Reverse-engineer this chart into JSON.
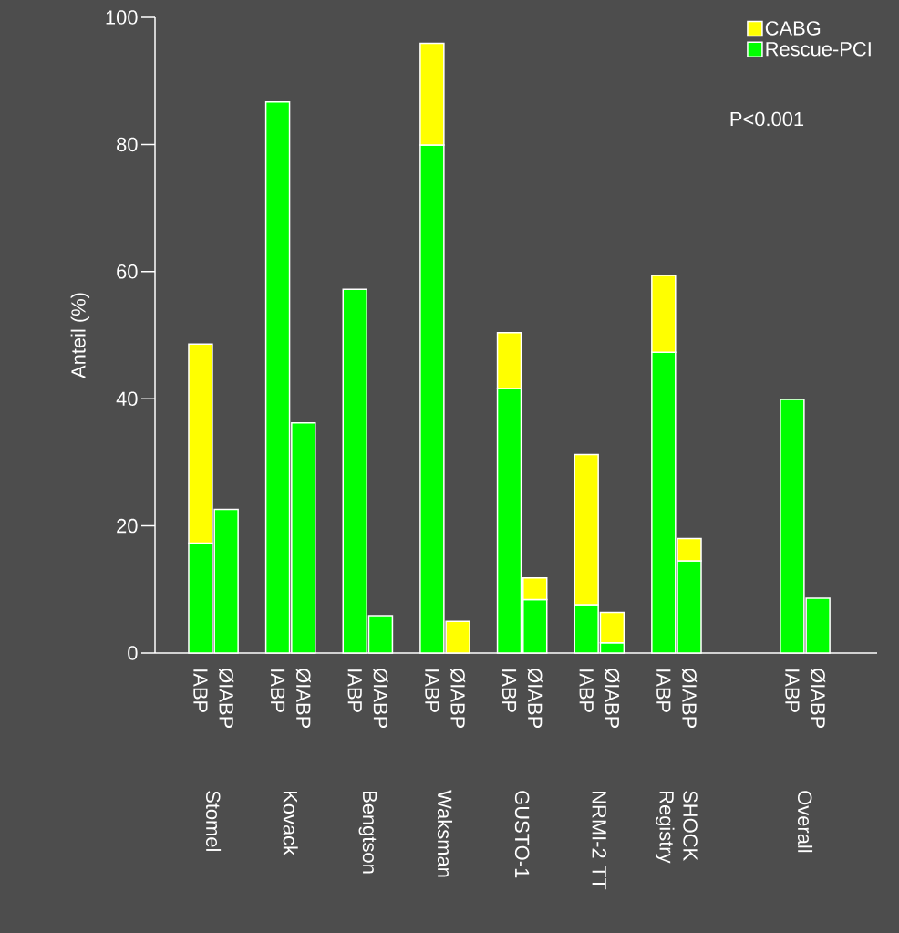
{
  "chart_data": {
    "type": "bar",
    "stacked": true,
    "ylabel": "Anteil (%)",
    "categories": [
      "IABP",
      "ØIABP",
      null,
      "IABP",
      "ØIABP",
      null,
      "IABP",
      "ØIABP",
      null,
      "IABP",
      "ØIABP",
      null,
      "IABP",
      "ØIABP",
      null,
      "IABP",
      "ØIABP",
      null,
      "IABP",
      "ØIABP",
      null,
      null,
      null,
      "IABP",
      "ØIABP"
    ],
    "series": [
      {
        "name": "Rescue-PCI",
        "color": "#00ff00",
        "values": [
          17.3,
          22.6,
          null,
          86.7,
          36.2,
          null,
          57.2,
          5.9,
          null,
          79.9,
          null,
          null,
          41.6,
          8.4,
          null,
          7.6,
          1.6,
          null,
          47.3,
          14.5,
          null,
          null,
          null,
          39.9,
          8.6
        ]
      },
      {
        "name": "CABG",
        "color": "#ffff00",
        "values": [
          31.3,
          null,
          null,
          null,
          null,
          null,
          null,
          null,
          null,
          16.0,
          5.0,
          null,
          8.8,
          3.4,
          null,
          23.6,
          4.8,
          null,
          12.1,
          3.5,
          null,
          null,
          null,
          null,
          null
        ]
      }
    ],
    "ylim": [
      0,
      100
    ],
    "yticks": [
      0,
      20,
      40,
      60,
      80,
      100
    ],
    "legend": "top right",
    "annotations": [
      "Stomel",
      "Kovack",
      "Bengtson",
      "Waksman",
      "GUSTO-1",
      "NRMI-2 TT",
      "SHOCK Registry",
      "Overall",
      "P<0.001"
    ]
  }
}
